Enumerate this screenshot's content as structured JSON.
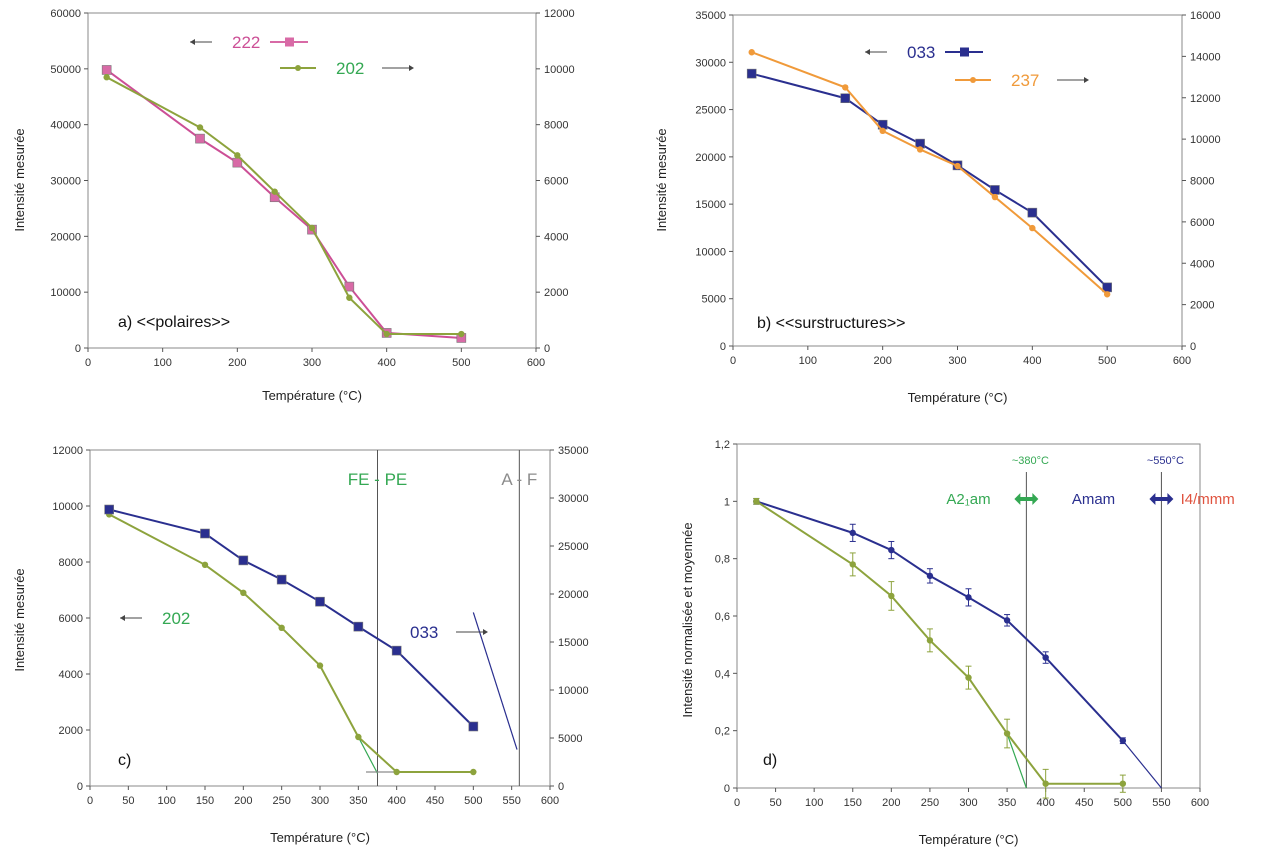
{
  "colors": {
    "pink": "#cc4f96",
    "pink_marker": "#d86aa6",
    "green": "#34a853",
    "olive": "#8da33d",
    "navy": "#2a2f8f",
    "orange": "#f09a3a",
    "gray": "#8c8c8c",
    "red": "#e0533f"
  },
  "chart_data": [
    {
      "type": "line",
      "panel_label": "a) <<polaires>>",
      "xlabel": "Température (°C)",
      "ylabel": "Intensité mesurée",
      "xlim": [
        0,
        600
      ],
      "xticks": [
        "0",
        "100",
        "200",
        "300",
        "400",
        "500",
        "600"
      ],
      "ylim_left": [
        0,
        60000
      ],
      "yticks_left": [
        "0",
        "10000",
        "20000",
        "30000",
        "40000",
        "50000",
        "60000"
      ],
      "ylim_right": [
        0,
        12000
      ],
      "yticks_right": [
        "0",
        "2000",
        "4000",
        "6000",
        "8000",
        "10000",
        "12000"
      ],
      "grid": false,
      "series": [
        {
          "name": "222",
          "axis": "left",
          "color": "pink",
          "marker": "square",
          "x": [
            25,
            150,
            200,
            250,
            300,
            350,
            400,
            500
          ],
          "y": [
            49800,
            37500,
            33200,
            27000,
            21200,
            11000,
            2700,
            1800
          ]
        },
        {
          "name": "202",
          "axis": "right",
          "color": "olive",
          "marker": "dot",
          "x": [
            25,
            150,
            200,
            250,
            300,
            350,
            400,
            500
          ],
          "y": [
            9700,
            7900,
            6900,
            5600,
            4300,
            1800,
            500,
            500
          ]
        }
      ],
      "legend": [
        {
          "arrow": "←",
          "text": "222",
          "color": "pink"
        },
        {
          "text": "202",
          "arrow": "→",
          "color": "green"
        }
      ]
    },
    {
      "type": "line",
      "panel_label": "b) <<surstructures>>",
      "xlabel": "Température (°C)",
      "ylabel": "Intensité mesurée",
      "xlim": [
        0,
        600
      ],
      "xticks": [
        "0",
        "100",
        "200",
        "300",
        "400",
        "500",
        "600"
      ],
      "ylim_left": [
        0,
        35000
      ],
      "yticks_left": [
        "0",
        "5000",
        "10000",
        "15000",
        "20000",
        "25000",
        "30000",
        "35000"
      ],
      "ylim_right": [
        0,
        16000
      ],
      "yticks_right": [
        "0",
        "2000",
        "4000",
        "6000",
        "8000",
        "10000",
        "12000",
        "14000",
        "16000"
      ],
      "grid": false,
      "series": [
        {
          "name": "033",
          "axis": "left",
          "color": "navy",
          "marker": "square",
          "x": [
            25,
            150,
            200,
            250,
            300,
            350,
            400,
            500
          ],
          "y": [
            28800,
            26200,
            23400,
            21400,
            19100,
            16500,
            14100,
            6200
          ]
        },
        {
          "name": "237",
          "axis": "right",
          "color": "orange",
          "marker": "dot",
          "x": [
            25,
            150,
            200,
            250,
            300,
            350,
            400,
            500
          ],
          "y": [
            14200,
            12500,
            10400,
            9500,
            8700,
            7200,
            5700,
            2500
          ]
        }
      ],
      "legend": [
        {
          "arrow": "←",
          "text": "033",
          "color": "navy"
        },
        {
          "text": "237",
          "arrow": "→",
          "color": "orange"
        }
      ]
    },
    {
      "type": "line",
      "panel_label": "c)",
      "xlabel": "Température (°C)",
      "ylabel": "Intensité mesurée",
      "xlim": [
        0,
        600
      ],
      "xticks": [
        "0",
        "50",
        "100",
        "150",
        "200",
        "250",
        "300",
        "350",
        "400",
        "450",
        "500",
        "550",
        "600"
      ],
      "ylim_left": [
        0,
        12000
      ],
      "yticks_left": [
        "0",
        "2000",
        "4000",
        "6000",
        "8000",
        "10000",
        "12000"
      ],
      "ylim_right": [
        0,
        35000
      ],
      "yticks_right": [
        "0",
        "5000",
        "10000",
        "15000",
        "20000",
        "25000",
        "30000",
        "35000"
      ],
      "grid": false,
      "vlines": [
        {
          "x": 375,
          "label": "FE - PE",
          "color": "green"
        },
        {
          "x": 560,
          "label": "A - F",
          "color": "gray"
        }
      ],
      "series": [
        {
          "name": "202",
          "axis": "left",
          "color": "olive",
          "marker": "dot",
          "x": [
            25,
            150,
            200,
            250,
            300,
            350,
            400,
            500
          ],
          "y": [
            9700,
            7900,
            6900,
            5650,
            4300,
            1750,
            500,
            500
          ]
        },
        {
          "name": "033",
          "axis": "right",
          "color": "navy",
          "marker": "square",
          "x": [
            25,
            150,
            200,
            250,
            300,
            350,
            400,
            500
          ],
          "y": [
            28800,
            26300,
            23500,
            21500,
            19200,
            16600,
            14100,
            6200
          ]
        }
      ],
      "fits": [
        {
          "color": "green",
          "x": [
            350,
            375
          ],
          "y": [
            1750,
            450
          ]
        },
        {
          "color": "gray",
          "x": [
            360,
            500
          ],
          "y": [
            500,
            500
          ]
        },
        {
          "color": "navy",
          "x": [
            500,
            557
          ],
          "y": [
            6200,
            1300
          ]
        }
      ],
      "legend": [
        {
          "arrow": "←",
          "text": "202",
          "color": "green"
        },
        {
          "text": "033",
          "arrow": "→",
          "color": "navy"
        }
      ]
    },
    {
      "type": "line",
      "panel_label": "d)",
      "xlabel": "Température (°C)",
      "ylabel": "Intensité normalisée et moyennée",
      "xlim": [
        0,
        600
      ],
      "xticks": [
        "0",
        "50",
        "100",
        "150",
        "200",
        "250",
        "300",
        "350",
        "400",
        "450",
        "500",
        "550",
        "600"
      ],
      "ylim_left": [
        0,
        1.2
      ],
      "yticks_left": [
        "0",
        "0,2",
        "0,4",
        "0,6",
        "0,8",
        "1",
        "1,2"
      ],
      "grid": false,
      "vlines": [
        {
          "x": 375,
          "label": "~380°C",
          "color": "green"
        },
        {
          "x": 550,
          "label": "~550°C",
          "color": "navy"
        }
      ],
      "phases": [
        {
          "text": "A2₁am",
          "color": "green"
        },
        {
          "text": "Amam",
          "color": "navy"
        },
        {
          "text": "I4/mmm",
          "color": "red"
        }
      ],
      "series": [
        {
          "name": "",
          "axis": "left",
          "color": "navy",
          "marker": "dot",
          "x": [
            25,
            150,
            200,
            250,
            300,
            350,
            400,
            500
          ],
          "y": [
            1.0,
            0.89,
            0.83,
            0.74,
            0.665,
            0.585,
            0.455,
            0.165
          ],
          "err": [
            0.01,
            0.03,
            0.03,
            0.025,
            0.03,
            0.02,
            0.02,
            0.01
          ]
        },
        {
          "name": "",
          "axis": "left",
          "color": "olive",
          "marker": "dot",
          "x": [
            25,
            150,
            200,
            250,
            300,
            350,
            400,
            500
          ],
          "y": [
            1.0,
            0.78,
            0.67,
            0.515,
            0.385,
            0.19,
            0.015,
            0.015
          ],
          "err": [
            0.01,
            0.04,
            0.05,
            0.04,
            0.04,
            0.05,
            0.05,
            0.03
          ]
        }
      ],
      "fits": [
        {
          "color": "navy",
          "x": [
            500,
            550
          ],
          "y": [
            0.165,
            0.0
          ]
        },
        {
          "color": "green",
          "x": [
            350,
            375
          ],
          "y": [
            0.19,
            0.0
          ]
        }
      ]
    }
  ]
}
